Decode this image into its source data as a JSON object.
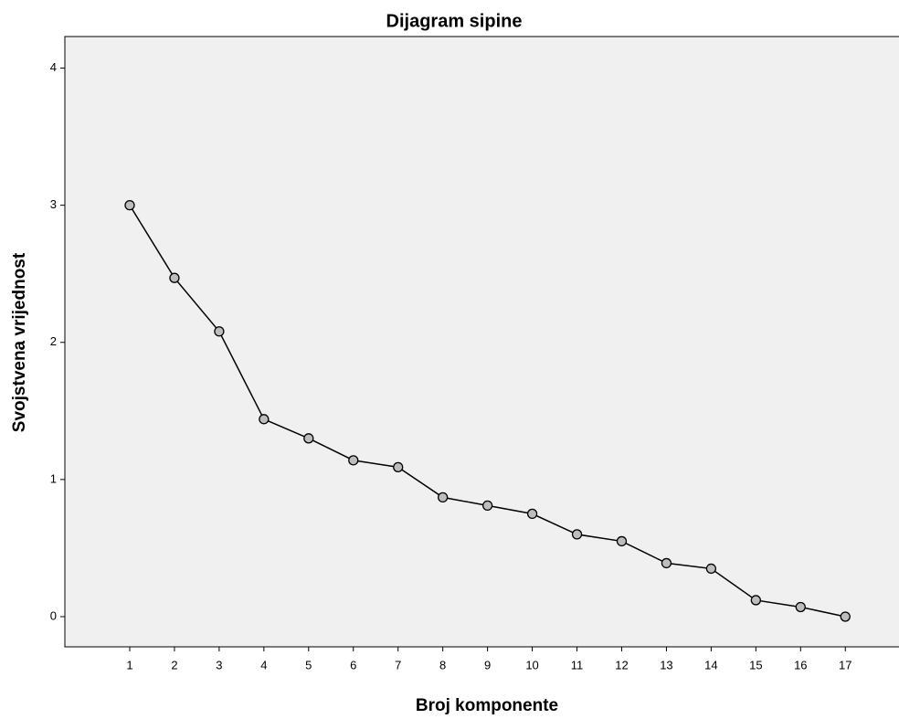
{
  "chart_data": {
    "type": "line",
    "title": "Dijagram sipine",
    "x_label": "Broj komponente",
    "y_label": "Svojstvena vrijednost",
    "x": [
      1,
      2,
      3,
      4,
      5,
      6,
      7,
      8,
      9,
      10,
      11,
      12,
      13,
      14,
      15,
      16,
      17
    ],
    "values": [
      3.0,
      2.47,
      2.08,
      1.44,
      1.3,
      1.14,
      1.09,
      0.87,
      0.81,
      0.75,
      0.6,
      0.55,
      0.39,
      0.35,
      0.12,
      0.07,
      0.0
    ],
    "color": "#000000",
    "xlim": [
      -0.45,
      18.2
    ],
    "xticks": [
      1,
      2,
      3,
      4,
      5,
      6,
      7,
      8,
      9,
      10,
      11,
      12,
      13,
      14,
      15,
      16,
      17
    ],
    "ylim": [
      -0.22,
      4.23
    ],
    "yticks": [
      0,
      1,
      2,
      3,
      4
    ],
    "grid": false,
    "markers": true
  }
}
